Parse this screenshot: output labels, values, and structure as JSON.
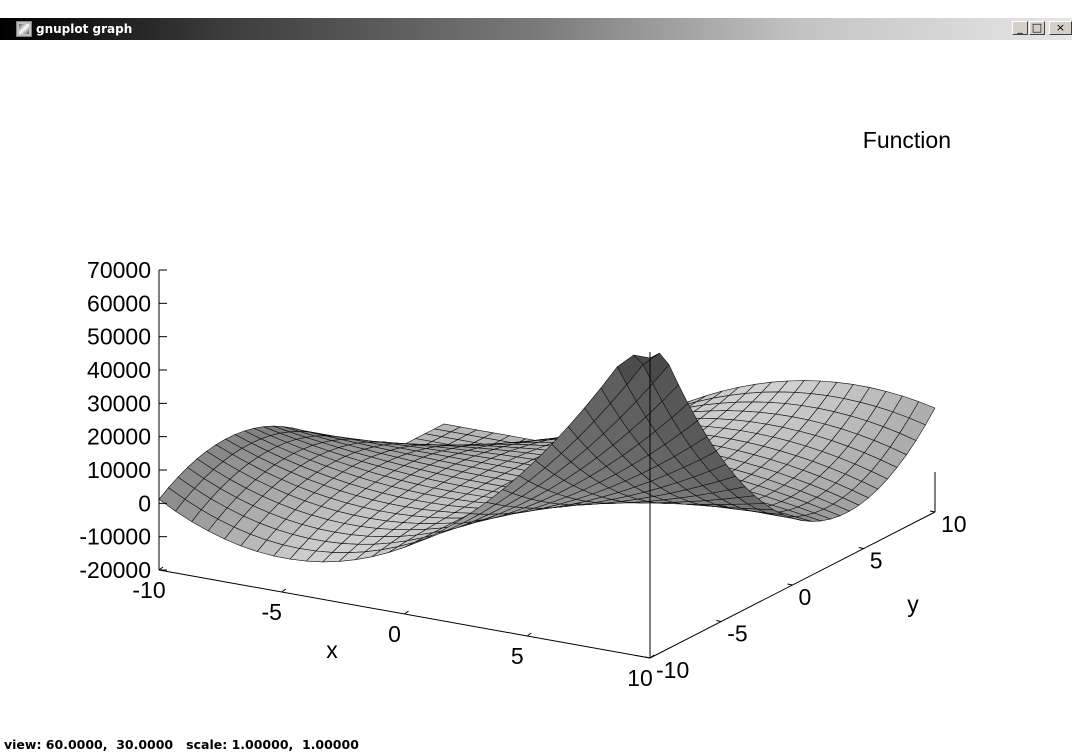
{
  "window": {
    "title": "gnuplot graph",
    "icon": "gnuplot-app-icon",
    "controls": {
      "minimize": "_",
      "maximize": "□",
      "close": "×"
    }
  },
  "status": {
    "text": "view: 60.0000,  30.0000   scale: 1.00000,  1.00000"
  },
  "chart_data": {
    "type": "surface",
    "legend": {
      "label": "Function",
      "position": "top-right"
    },
    "xlabel": "x",
    "ylabel": "y",
    "zlabel": "",
    "xlim": [
      -10,
      10
    ],
    "ylim": [
      -10,
      10
    ],
    "zlim": [
      -20000,
      70000
    ],
    "xticks": [
      "-10",
      "-5",
      "0",
      "5",
      "10"
    ],
    "yticks": [
      "-10",
      "-5",
      "0",
      "5",
      "10"
    ],
    "zticks": [
      "-20000",
      "-10000",
      "0",
      "10000",
      "20000",
      "30000",
      "40000",
      "50000",
      "60000",
      "70000"
    ],
    "view": {
      "rot_x": 60,
      "rot_z": 30,
      "scale": 1,
      "scale_z": 1
    },
    "grid": false,
    "colors": {
      "surface_light": "#c8c8c8",
      "surface_dark": "#3c3c3c",
      "mesh": "#101010"
    }
  }
}
